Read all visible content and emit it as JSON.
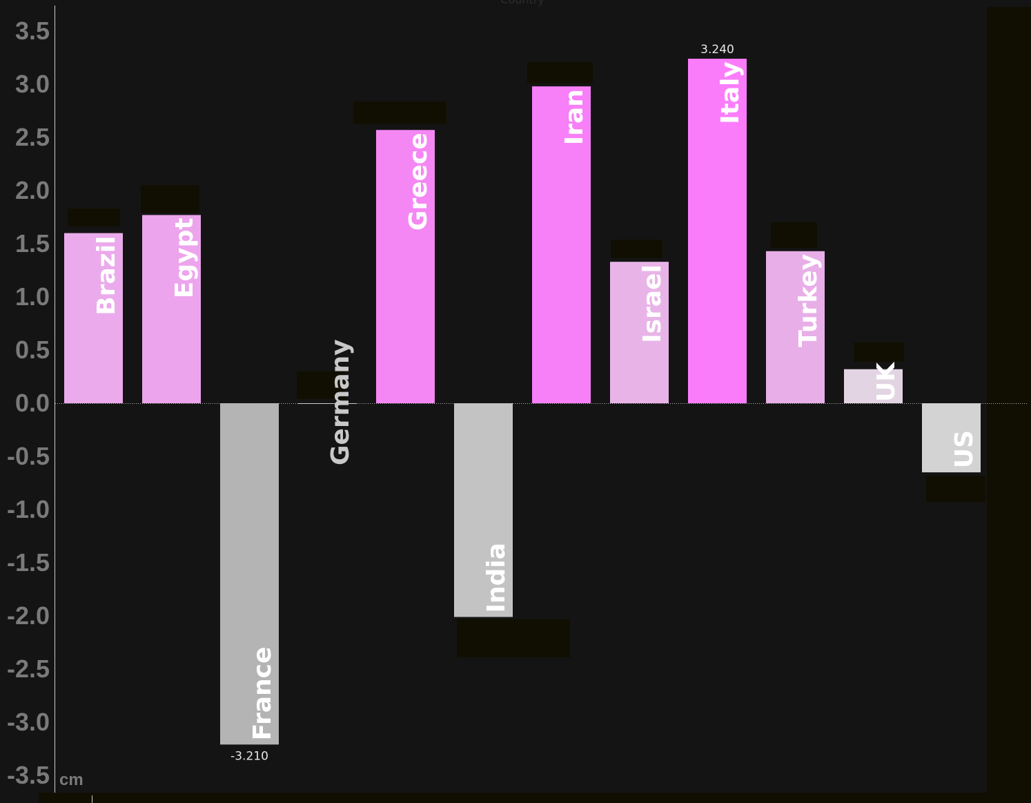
{
  "chart_data": {
    "type": "bar",
    "xlabel": "Country",
    "ylabel": "",
    "y_unit": "cm",
    "ylim": [
      -3.5,
      3.5
    ],
    "yticks": [
      "3.5",
      "3.0",
      "2.5",
      "2.0",
      "1.5",
      "1.0",
      "0.5",
      "0.0",
      "-0.5",
      "-1.0",
      "-1.5",
      "-2.0",
      "-2.5",
      "-3.0",
      "-3.5"
    ],
    "categories": [
      "Brazil",
      "Egypt",
      "France",
      "Germany",
      "Greece",
      "India",
      "Iran",
      "Israel",
      "Italy",
      "Turkey",
      "UK",
      "US"
    ],
    "values": [
      1.6,
      1.77,
      -3.21,
      0.0,
      2.57,
      -2.01,
      2.98,
      1.33,
      3.24,
      1.43,
      0.32,
      -0.65
    ],
    "colors": [
      "#ebaaeb",
      "#eca4ec",
      "#b4b4b4",
      "#d2d2d2",
      "#f487f4",
      "#c3c3c3",
      "#f77ff7",
      "#e8b4e8",
      "#fb7cfb",
      "#e8aee8",
      "#e2d4e2",
      "#d3d3d3"
    ],
    "value_labels": {
      "France": "-3.210",
      "Italy": "3.240"
    },
    "grid": false,
    "legend": "none"
  }
}
